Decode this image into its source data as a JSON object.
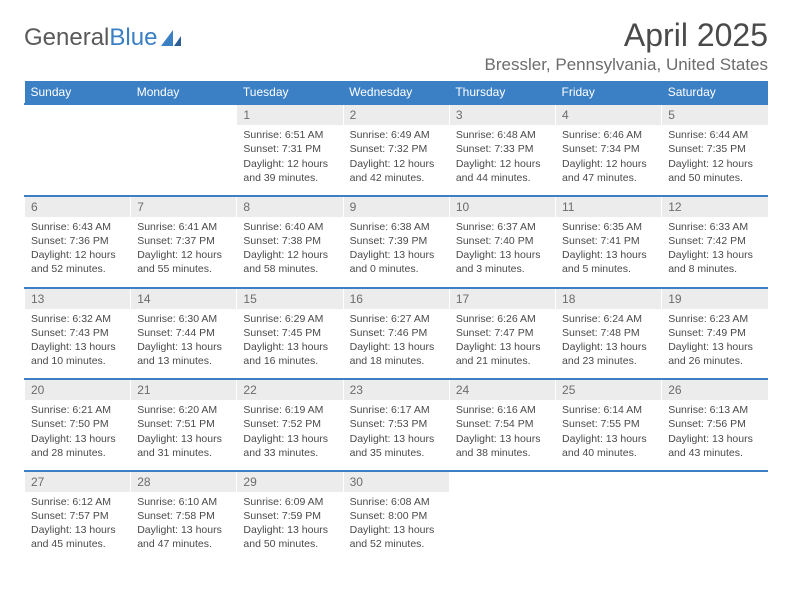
{
  "brand": {
    "part1": "General",
    "part2": "Blue"
  },
  "title": "April 2025",
  "location": "Bressler, Pennsylvania, United States",
  "colors": {
    "header_bg": "#3b7fc4",
    "header_text": "#ffffff",
    "daynum_bg": "#ececec",
    "daynum_text": "#6c6c6c",
    "body_text": "#4a4a4a",
    "page_bg": "#ffffff"
  },
  "weekdays": [
    "Sunday",
    "Monday",
    "Tuesday",
    "Wednesday",
    "Thursday",
    "Friday",
    "Saturday"
  ],
  "weeks": [
    [
      null,
      null,
      {
        "n": "1",
        "sr": "6:51 AM",
        "ss": "7:31 PM",
        "dl": "12 hours and 39 minutes."
      },
      {
        "n": "2",
        "sr": "6:49 AM",
        "ss": "7:32 PM",
        "dl": "12 hours and 42 minutes."
      },
      {
        "n": "3",
        "sr": "6:48 AM",
        "ss": "7:33 PM",
        "dl": "12 hours and 44 minutes."
      },
      {
        "n": "4",
        "sr": "6:46 AM",
        "ss": "7:34 PM",
        "dl": "12 hours and 47 minutes."
      },
      {
        "n": "5",
        "sr": "6:44 AM",
        "ss": "7:35 PM",
        "dl": "12 hours and 50 minutes."
      }
    ],
    [
      {
        "n": "6",
        "sr": "6:43 AM",
        "ss": "7:36 PM",
        "dl": "12 hours and 52 minutes."
      },
      {
        "n": "7",
        "sr": "6:41 AM",
        "ss": "7:37 PM",
        "dl": "12 hours and 55 minutes."
      },
      {
        "n": "8",
        "sr": "6:40 AM",
        "ss": "7:38 PM",
        "dl": "12 hours and 58 minutes."
      },
      {
        "n": "9",
        "sr": "6:38 AM",
        "ss": "7:39 PM",
        "dl": "13 hours and 0 minutes."
      },
      {
        "n": "10",
        "sr": "6:37 AM",
        "ss": "7:40 PM",
        "dl": "13 hours and 3 minutes."
      },
      {
        "n": "11",
        "sr": "6:35 AM",
        "ss": "7:41 PM",
        "dl": "13 hours and 5 minutes."
      },
      {
        "n": "12",
        "sr": "6:33 AM",
        "ss": "7:42 PM",
        "dl": "13 hours and 8 minutes."
      }
    ],
    [
      {
        "n": "13",
        "sr": "6:32 AM",
        "ss": "7:43 PM",
        "dl": "13 hours and 10 minutes."
      },
      {
        "n": "14",
        "sr": "6:30 AM",
        "ss": "7:44 PM",
        "dl": "13 hours and 13 minutes."
      },
      {
        "n": "15",
        "sr": "6:29 AM",
        "ss": "7:45 PM",
        "dl": "13 hours and 16 minutes."
      },
      {
        "n": "16",
        "sr": "6:27 AM",
        "ss": "7:46 PM",
        "dl": "13 hours and 18 minutes."
      },
      {
        "n": "17",
        "sr": "6:26 AM",
        "ss": "7:47 PM",
        "dl": "13 hours and 21 minutes."
      },
      {
        "n": "18",
        "sr": "6:24 AM",
        "ss": "7:48 PM",
        "dl": "13 hours and 23 minutes."
      },
      {
        "n": "19",
        "sr": "6:23 AM",
        "ss": "7:49 PM",
        "dl": "13 hours and 26 minutes."
      }
    ],
    [
      {
        "n": "20",
        "sr": "6:21 AM",
        "ss": "7:50 PM",
        "dl": "13 hours and 28 minutes."
      },
      {
        "n": "21",
        "sr": "6:20 AM",
        "ss": "7:51 PM",
        "dl": "13 hours and 31 minutes."
      },
      {
        "n": "22",
        "sr": "6:19 AM",
        "ss": "7:52 PM",
        "dl": "13 hours and 33 minutes."
      },
      {
        "n": "23",
        "sr": "6:17 AM",
        "ss": "7:53 PM",
        "dl": "13 hours and 35 minutes."
      },
      {
        "n": "24",
        "sr": "6:16 AM",
        "ss": "7:54 PM",
        "dl": "13 hours and 38 minutes."
      },
      {
        "n": "25",
        "sr": "6:14 AM",
        "ss": "7:55 PM",
        "dl": "13 hours and 40 minutes."
      },
      {
        "n": "26",
        "sr": "6:13 AM",
        "ss": "7:56 PM",
        "dl": "13 hours and 43 minutes."
      }
    ],
    [
      {
        "n": "27",
        "sr": "6:12 AM",
        "ss": "7:57 PM",
        "dl": "13 hours and 45 minutes."
      },
      {
        "n": "28",
        "sr": "6:10 AM",
        "ss": "7:58 PM",
        "dl": "13 hours and 47 minutes."
      },
      {
        "n": "29",
        "sr": "6:09 AM",
        "ss": "7:59 PM",
        "dl": "13 hours and 50 minutes."
      },
      {
        "n": "30",
        "sr": "6:08 AM",
        "ss": "8:00 PM",
        "dl": "13 hours and 52 minutes."
      },
      null,
      null,
      null
    ]
  ],
  "labels": {
    "sunrise_prefix": "Sunrise: ",
    "sunset_prefix": "Sunset: ",
    "daylight_prefix": "Daylight: "
  }
}
